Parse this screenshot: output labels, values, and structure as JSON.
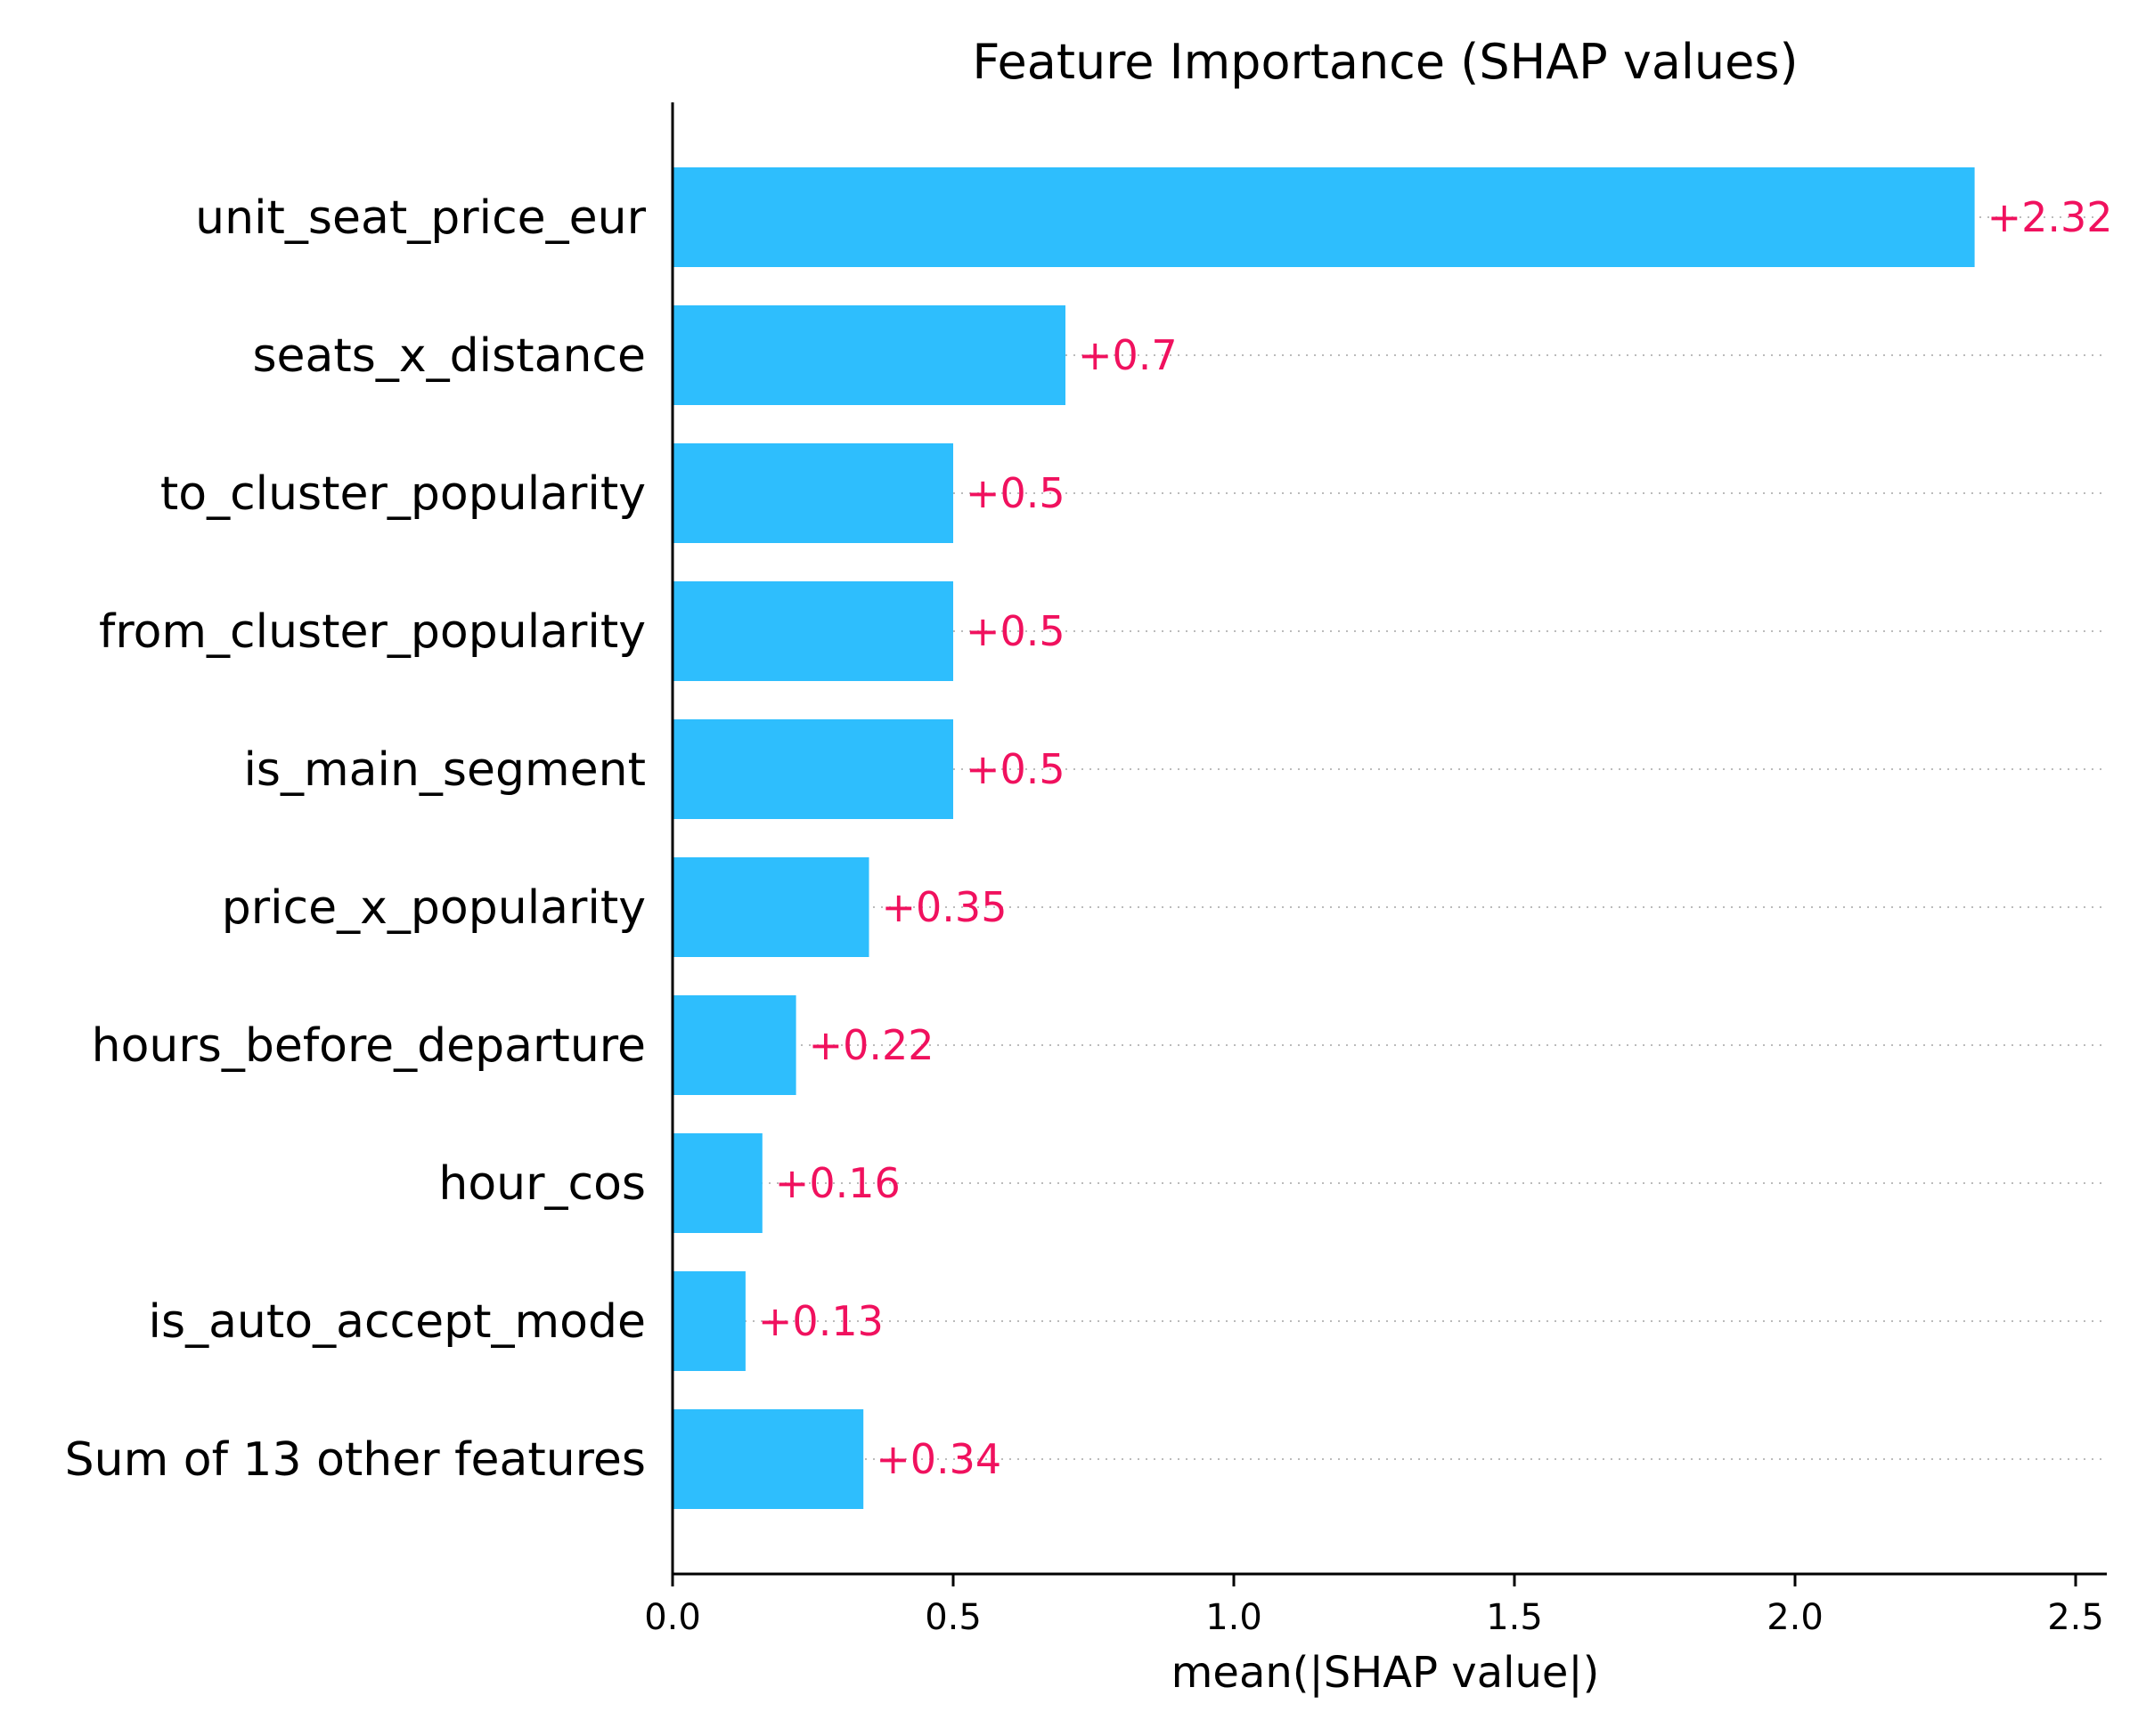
{
  "chart_data": {
    "type": "bar",
    "orientation": "horizontal",
    "title": "Feature Importance (SHAP values)",
    "xlabel": "mean(|SHAP value|)",
    "ylabel": "",
    "xlim": [
      0,
      2.55
    ],
    "xticks": [
      0.0,
      0.5,
      1.0,
      1.5,
      2.0,
      2.5
    ],
    "xtick_labels": [
      "0.0",
      "0.5",
      "1.0",
      "1.5",
      "2.0",
      "2.5"
    ],
    "categories": [
      "unit_seat_price_eur",
      "seats_x_distance",
      "to_cluster_popularity",
      "from_cluster_popularity",
      "is_main_segment",
      "price_x_popularity",
      "hours_before_departure",
      "hour_cos",
      "is_auto_accept_mode",
      "Sum of 13 other features"
    ],
    "values": [
      2.32,
      0.7,
      0.5,
      0.5,
      0.5,
      0.35,
      0.22,
      0.16,
      0.13,
      0.34
    ],
    "value_labels": [
      "+2.32",
      "+0.7",
      "+0.5",
      "+0.5",
      "+0.5",
      "+0.35",
      "+0.22",
      "+0.16",
      "+0.13",
      "+0.34"
    ],
    "grid": "dotted horizontal guide lines per row",
    "legend": "none",
    "colors": {
      "bar": "#2EBEFD",
      "value_label": "#F0115E",
      "axis": "#000000",
      "guide": "#BBBBBB"
    }
  }
}
